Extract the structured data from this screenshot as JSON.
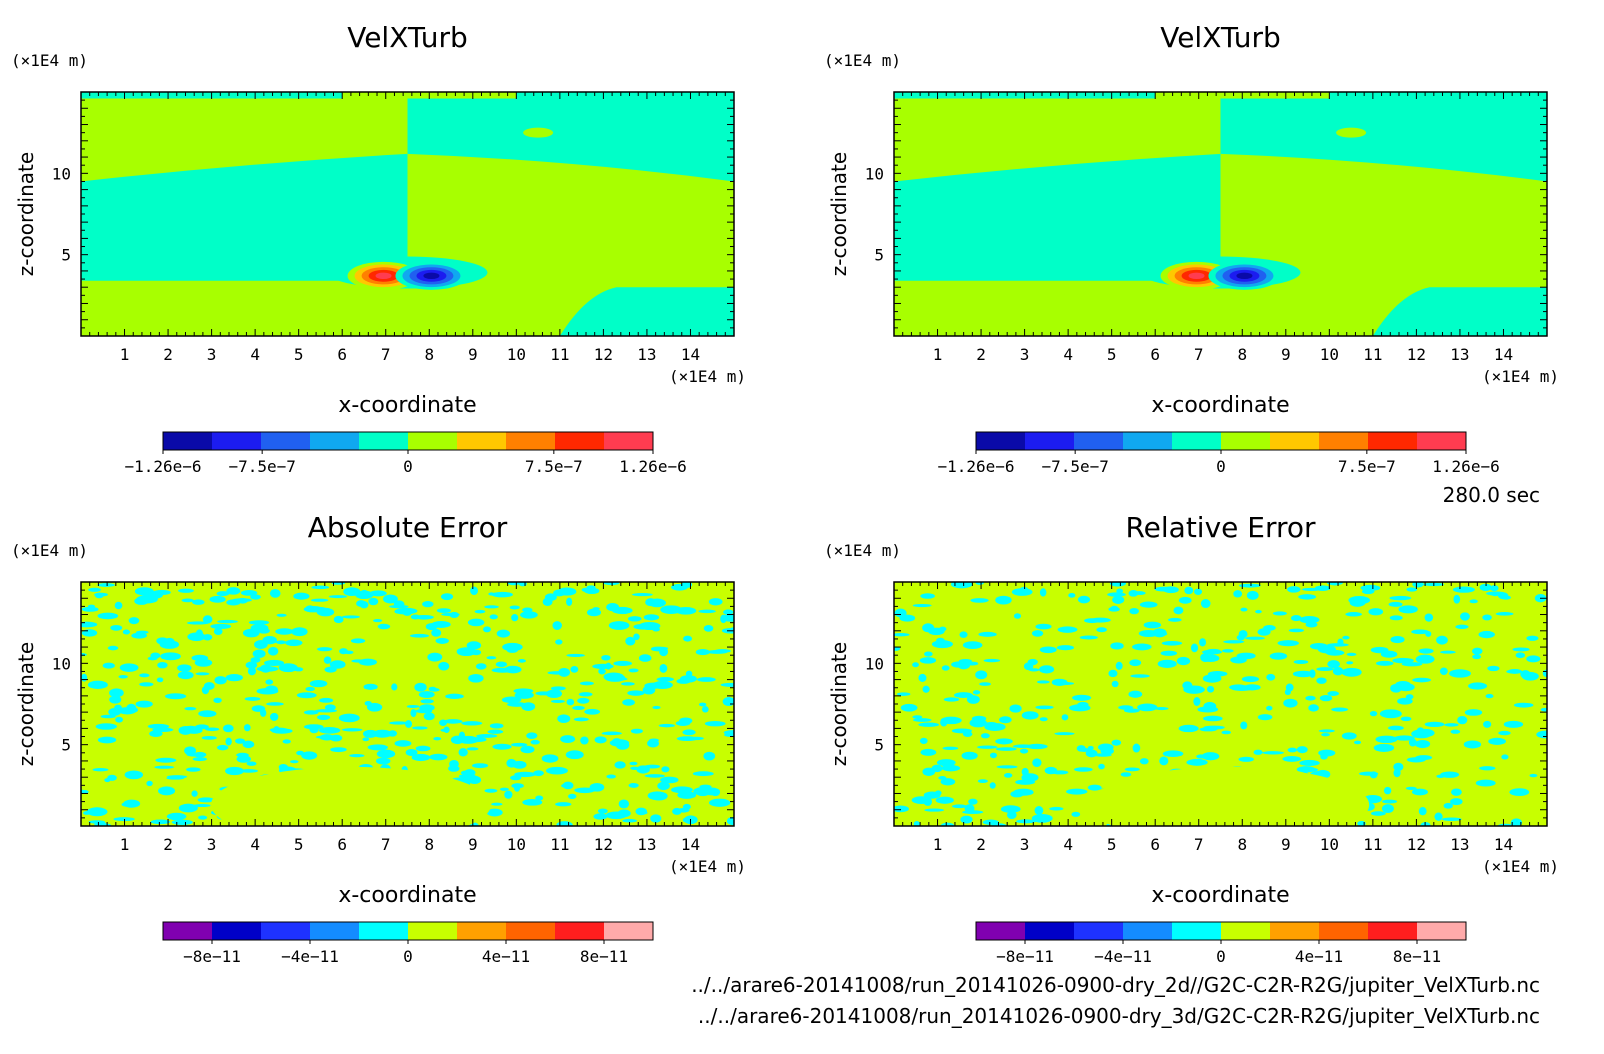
{
  "time_label": "280.0 sec",
  "files": [
    "../../arare6-20141008/run_20141026-0900-dry_2d//G2C-C2R-R2G/jupiter_VelXTurb.nc",
    "../../arare6-20141008/run_20141026-0900-dry_3d/G2C-C2R-R2G/jupiter_VelXTurb.nc"
  ],
  "chart_data": [
    {
      "type": "heatmap",
      "title": "VelXTurb",
      "xlabel": "x-coordinate",
      "ylabel": "z-coordinate",
      "x_unit": "(×1E4 m)",
      "y_unit": "(×1E4 m)",
      "xlim": [
        0,
        15
      ],
      "ylim": [
        0,
        15
      ],
      "x_ticks": [
        1,
        2,
        3,
        4,
        5,
        6,
        7,
        8,
        9,
        10,
        11,
        12,
        13,
        14
      ],
      "y_ticks": [
        5,
        10
      ],
      "colorbar": {
        "colors": [
          "#0a0aa8",
          "#1c1cf0",
          "#2060f0",
          "#10a8f0",
          "#00ffc8",
          "#a8ff00",
          "#ffc800",
          "#ff8000",
          "#ff2800",
          "#ff3c50"
        ],
        "tick_positions": [
          -1.26e-06,
          -7.5e-07,
          0,
          7.5e-07,
          1.26e-06
        ],
        "tick_labels": [
          "−1.26e−6",
          "−7.5e−7",
          "0",
          "7.5e−7",
          "1.26e−6"
        ],
        "range": [
          -1.26e-06,
          1.26e-06
        ]
      },
      "style": "field"
    },
    {
      "type": "heatmap",
      "title": "VelXTurb",
      "xlabel": "x-coordinate",
      "ylabel": "z-coordinate",
      "x_unit": "(×1E4 m)",
      "y_unit": "(×1E4 m)",
      "xlim": [
        0,
        15
      ],
      "ylim": [
        0,
        15
      ],
      "x_ticks": [
        1,
        2,
        3,
        4,
        5,
        6,
        7,
        8,
        9,
        10,
        11,
        12,
        13,
        14
      ],
      "y_ticks": [
        5,
        10
      ],
      "colorbar": {
        "colors": [
          "#0a0aa8",
          "#1c1cf0",
          "#2060f0",
          "#10a8f0",
          "#00ffc8",
          "#a8ff00",
          "#ffc800",
          "#ff8000",
          "#ff2800",
          "#ff3c50"
        ],
        "tick_positions": [
          -1.26e-06,
          -7.5e-07,
          0,
          7.5e-07,
          1.26e-06
        ],
        "tick_labels": [
          "−1.26e−6",
          "−7.5e−7",
          "0",
          "7.5e−7",
          "1.26e−6"
        ],
        "range": [
          -1.26e-06,
          1.26e-06
        ]
      },
      "style": "field"
    },
    {
      "type": "heatmap",
      "title": "Absolute Error",
      "xlabel": "x-coordinate",
      "ylabel": "z-coordinate",
      "x_unit": "(×1E4 m)",
      "y_unit": "(×1E4 m)",
      "xlim": [
        0,
        15
      ],
      "ylim": [
        0,
        15
      ],
      "x_ticks": [
        1,
        2,
        3,
        4,
        5,
        6,
        7,
        8,
        9,
        10,
        11,
        12,
        13,
        14
      ],
      "y_ticks": [
        5,
        10
      ],
      "colorbar": {
        "colors": [
          "#8000b0",
          "#0000c8",
          "#1e32ff",
          "#148cff",
          "#00ffff",
          "#c8ff00",
          "#ffa000",
          "#ff6400",
          "#ff1e1e",
          "#ffaaaa"
        ],
        "tick_positions": [
          -8e-11,
          -4e-11,
          0,
          4e-11,
          8e-11
        ],
        "tick_labels": [
          "−8e−11",
          "−4e−11",
          "0",
          "4e−11",
          "8e−11"
        ],
        "range": [
          -1e-10,
          1e-10
        ]
      },
      "style": "noise",
      "mix": 0.5
    },
    {
      "type": "heatmap",
      "title": "Relative Error",
      "xlabel": "x-coordinate",
      "ylabel": "z-coordinate",
      "x_unit": "(×1E4 m)",
      "y_unit": "(×1E4 m)",
      "xlim": [
        0,
        15
      ],
      "ylim": [
        0,
        15
      ],
      "x_ticks": [
        1,
        2,
        3,
        4,
        5,
        6,
        7,
        8,
        9,
        10,
        11,
        12,
        13,
        14
      ],
      "y_ticks": [
        5,
        10
      ],
      "colorbar": {
        "colors": [
          "#8000b0",
          "#0000c8",
          "#1e32ff",
          "#148cff",
          "#00ffff",
          "#c8ff00",
          "#ffa000",
          "#ff6400",
          "#ff1e1e",
          "#ffaaaa"
        ],
        "tick_positions": [
          -8e-11,
          -4e-11,
          0,
          4e-11,
          8e-11
        ],
        "tick_labels": [
          "−8e−11",
          "−4e−11",
          "0",
          "4e−11",
          "8e−11"
        ],
        "range": [
          -1e-10,
          1e-10
        ]
      },
      "style": "noise",
      "mix": 0.35
    }
  ]
}
